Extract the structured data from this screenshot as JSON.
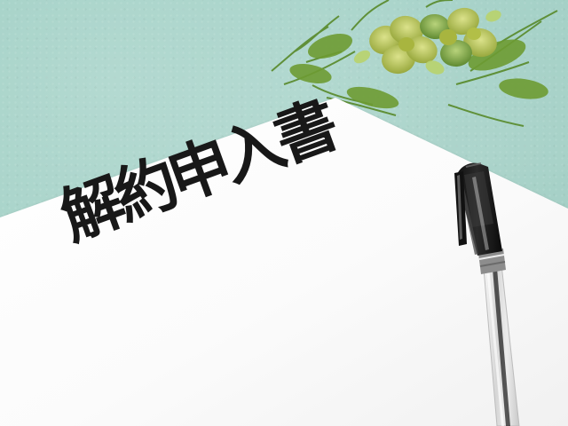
{
  "document": {
    "title": "解約申入書"
  },
  "colors": {
    "background": "#a3d1c7",
    "paper": "#ffffff",
    "ink": "#181818",
    "plant_green": "#6f9b2e",
    "plant_yellow": "#c9d35a"
  },
  "icons": {
    "plant": "succulent-plant-icon",
    "pen": "ballpoint-pen-icon"
  }
}
